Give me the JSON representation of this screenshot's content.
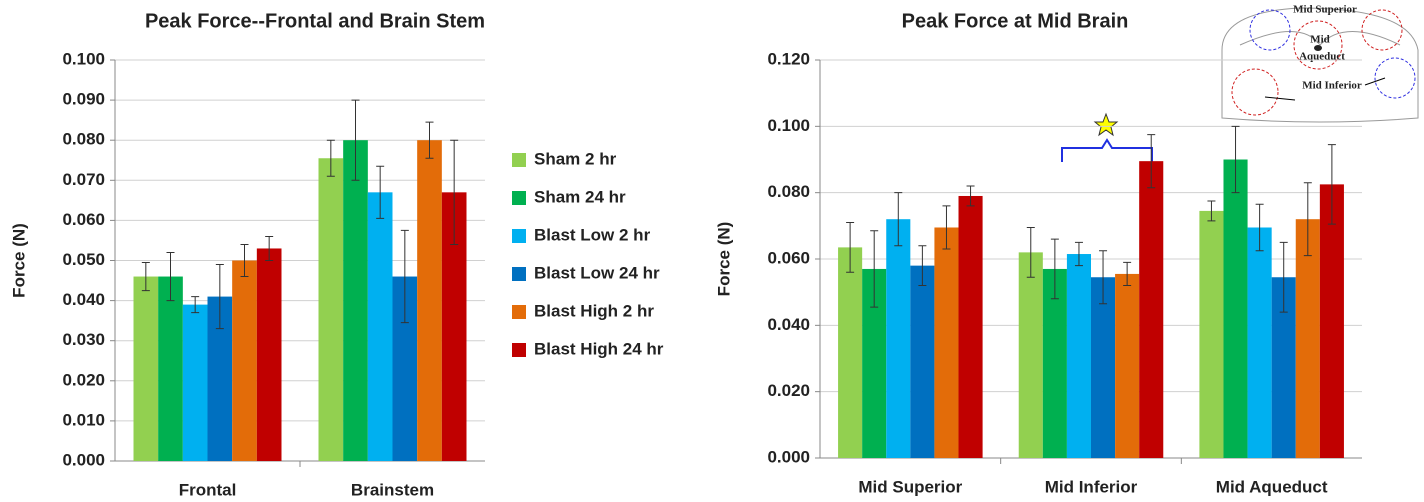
{
  "chart_data": [
    {
      "type": "bar",
      "title": "Peak Force--Frontal and Brain Stem",
      "y_label": "Force (N)",
      "categories": [
        "Frontal",
        "Brainstem"
      ],
      "series": [
        {
          "name": "Sham 2 hr",
          "color": "#92d050",
          "values": [
            0.046,
            0.0755
          ],
          "errors": [
            0.0035,
            0.0045
          ]
        },
        {
          "name": "Sham 24 hr",
          "color": "#00b050",
          "values": [
            0.046,
            0.08
          ],
          "errors": [
            0.006,
            0.01
          ]
        },
        {
          "name": "Blast Low 2 hr",
          "color": "#00b0f0",
          "values": [
            0.039,
            0.067
          ],
          "errors": [
            0.002,
            0.0065
          ]
        },
        {
          "name": "Blast Low 24 hr",
          "color": "#0070c0",
          "values": [
            0.041,
            0.046
          ],
          "errors": [
            0.008,
            0.0115
          ]
        },
        {
          "name": "Blast High 2 hr",
          "color": "#e36c09",
          "values": [
            0.05,
            0.08
          ],
          "errors": [
            0.004,
            0.0045
          ]
        },
        {
          "name": "Blast High 24 hr",
          "color": "#c00000",
          "values": [
            0.053,
            0.067
          ],
          "errors": [
            0.003,
            0.013
          ]
        }
      ],
      "ylim": [
        0,
        0.1
      ],
      "yticks": [
        {
          "value": 0,
          "label": "0.000"
        },
        {
          "value": 0.01,
          "label": "0.010"
        },
        {
          "value": 0.02,
          "label": "0.020"
        },
        {
          "value": 0.03,
          "label": "0.030"
        },
        {
          "value": 0.04,
          "label": "0.040"
        },
        {
          "value": 0.05,
          "label": "0.050"
        },
        {
          "value": 0.06,
          "label": "0.060"
        },
        {
          "value": 0.07,
          "label": "0.070"
        },
        {
          "value": 0.08,
          "label": "0.080"
        },
        {
          "value": 0.09,
          "label": "0.090"
        },
        {
          "value": 0.1,
          "label": "0.100"
        }
      ],
      "grid": true,
      "legend": "right"
    },
    {
      "type": "bar",
      "title": "Peak Force at Mid Brain",
      "y_label": "Force (N)",
      "categories": [
        "Mid Superior",
        "Mid Inferior",
        "Mid Aqueduct"
      ],
      "series": [
        {
          "color": "#92d050",
          "values": [
            0.0635,
            0.062,
            0.0745
          ],
          "errors": [
            0.0075,
            0.0075,
            0.003
          ]
        },
        {
          "color": "#00b050",
          "values": [
            0.057,
            0.057,
            0.09
          ],
          "errors": [
            0.0115,
            0.009,
            0.01
          ]
        },
        {
          "color": "#00b0f0",
          "values": [
            0.072,
            0.0615,
            0.0695
          ],
          "errors": [
            0.008,
            0.0035,
            0.007
          ]
        },
        {
          "color": "#0070c0",
          "values": [
            0.058,
            0.0545,
            0.0545
          ],
          "errors": [
            0.006,
            0.008,
            0.0105
          ]
        },
        {
          "color": "#e36c09",
          "values": [
            0.0695,
            0.0555,
            0.072
          ],
          "errors": [
            0.0065,
            0.0035,
            0.011
          ]
        },
        {
          "color": "#c00000",
          "values": [
            0.079,
            0.0895,
            0.0825
          ],
          "errors": [
            0.003,
            0.008,
            0.012
          ]
        }
      ],
      "ylim": [
        0,
        0.12
      ],
      "yticks": [
        {
          "value": 0,
          "label": "0.000"
        },
        {
          "value": 0.02,
          "label": "0.020"
        },
        {
          "value": 0.04,
          "label": "0.040"
        },
        {
          "value": 0.06,
          "label": "0.060"
        },
        {
          "value": 0.08,
          "label": "0.080"
        },
        {
          "value": 0.1,
          "label": "0.100"
        },
        {
          "value": 0.12,
          "label": "0.120"
        }
      ],
      "grid": true,
      "inset_labels": [
        "Mid Superior",
        "Mid",
        "Aqueduct",
        "Mid Inferior"
      ]
    }
  ]
}
